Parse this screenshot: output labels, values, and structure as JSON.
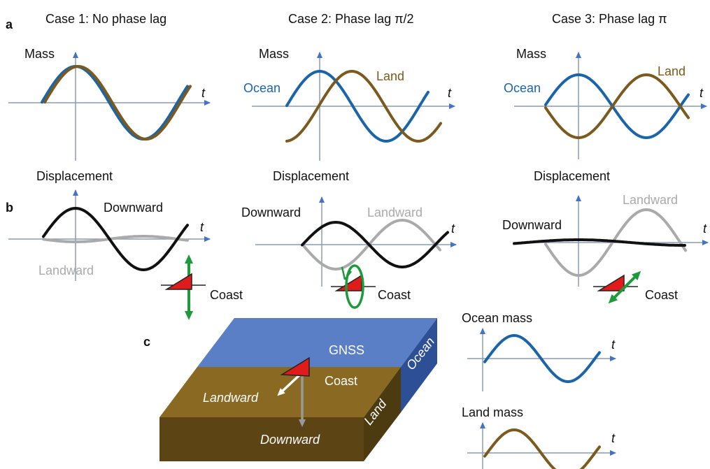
{
  "panel_labels": [
    "a",
    "b",
    "c"
  ],
  "cases": [
    {
      "title": "Case 1: No phase lag",
      "mass": {
        "label": "Mass",
        "axis": "t"
      },
      "displacement": {
        "label": "Displacement",
        "downward": "Downward",
        "landward": "Landward",
        "axis": "t",
        "coast": "Coast"
      }
    },
    {
      "title": "Case 2: Phase lag π/2",
      "mass": {
        "label": "Mass",
        "ocean": "Ocean",
        "land": "Land",
        "axis": "t"
      },
      "displacement": {
        "label": "Displacement",
        "downward": "Downward",
        "landward": "Landward",
        "axis": "t",
        "coast": "Coast"
      }
    },
    {
      "title": "Case 3: Phase lag π",
      "mass": {
        "label": "Mass",
        "ocean": "Ocean",
        "land": "Land",
        "axis": "t"
      },
      "displacement": {
        "label": "Displacement",
        "downward": "Downward",
        "landward": "Landward",
        "axis": "t",
        "coast": "Coast"
      }
    }
  ],
  "block": {
    "gnss": "GNSS",
    "coast": "Coast",
    "ocean": "Ocean",
    "land": "Land",
    "landward": "Landward",
    "downward": "Downward"
  },
  "insets": [
    {
      "label": "Ocean mass",
      "axis": "t"
    },
    {
      "label": "Land mass",
      "axis": "t"
    }
  ]
}
